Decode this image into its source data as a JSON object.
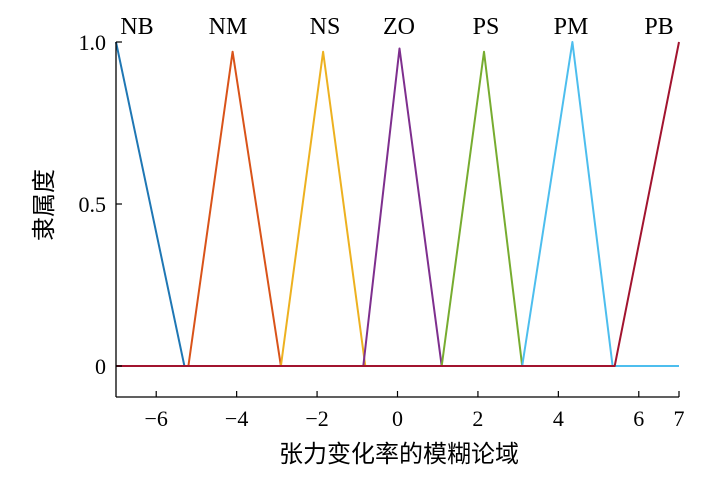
{
  "chart_data": {
    "type": "line",
    "title": "",
    "xlabel": "张力变化率的模糊论域",
    "ylabel": "隶属度",
    "xlim": [
      -7,
      7
    ],
    "ylim": [
      -0.1,
      1.0
    ],
    "x_ticks": [
      -6,
      -4,
      -2,
      0,
      2,
      4,
      6,
      7
    ],
    "x_tick_labels": [
      "−6",
      "−4",
      "−2",
      "0",
      "2",
      "4",
      "6",
      "7"
    ],
    "y_ticks": [
      0,
      0.5,
      1.0
    ],
    "y_tick_labels": [
      "0",
      "0.5",
      "1.0"
    ],
    "grid": false,
    "legend": "none",
    "series": [
      {
        "name": "NB",
        "color": "#1f77b4",
        "x": [
          -7,
          -5.3,
          -3,
          7
        ],
        "y": [
          1.0,
          0,
          0,
          0
        ]
      },
      {
        "name": "NM",
        "color": "#d95319",
        "x": [
          -7,
          -5.2,
          -4.1,
          -2.9,
          7
        ],
        "y": [
          0,
          0,
          0.97,
          0,
          0
        ]
      },
      {
        "name": "NS",
        "color": "#edb120",
        "x": [
          -7,
          -2.9,
          -1.85,
          -0.8,
          7
        ],
        "y": [
          0,
          0,
          0.97,
          0,
          0
        ]
      },
      {
        "name": "ZO",
        "color": "#7e2f8e",
        "x": [
          -7,
          -0.85,
          0.05,
          1.1,
          7
        ],
        "y": [
          0,
          0,
          0.98,
          0,
          0
        ]
      },
      {
        "name": "PS",
        "color": "#77ac30",
        "x": [
          -7,
          1.1,
          2.15,
          3.1,
          7
        ],
        "y": [
          0,
          0,
          0.97,
          0,
          0
        ]
      },
      {
        "name": "PM",
        "color": "#4dbeee",
        "x": [
          -7,
          3.1,
          4.35,
          5.35,
          7
        ],
        "y": [
          0,
          0,
          1.0,
          0,
          0
        ]
      },
      {
        "name": "PB",
        "color": "#a2142f",
        "x": [
          -7,
          5.4,
          7
        ],
        "y": [
          0,
          0,
          1.0
        ]
      }
    ]
  }
}
